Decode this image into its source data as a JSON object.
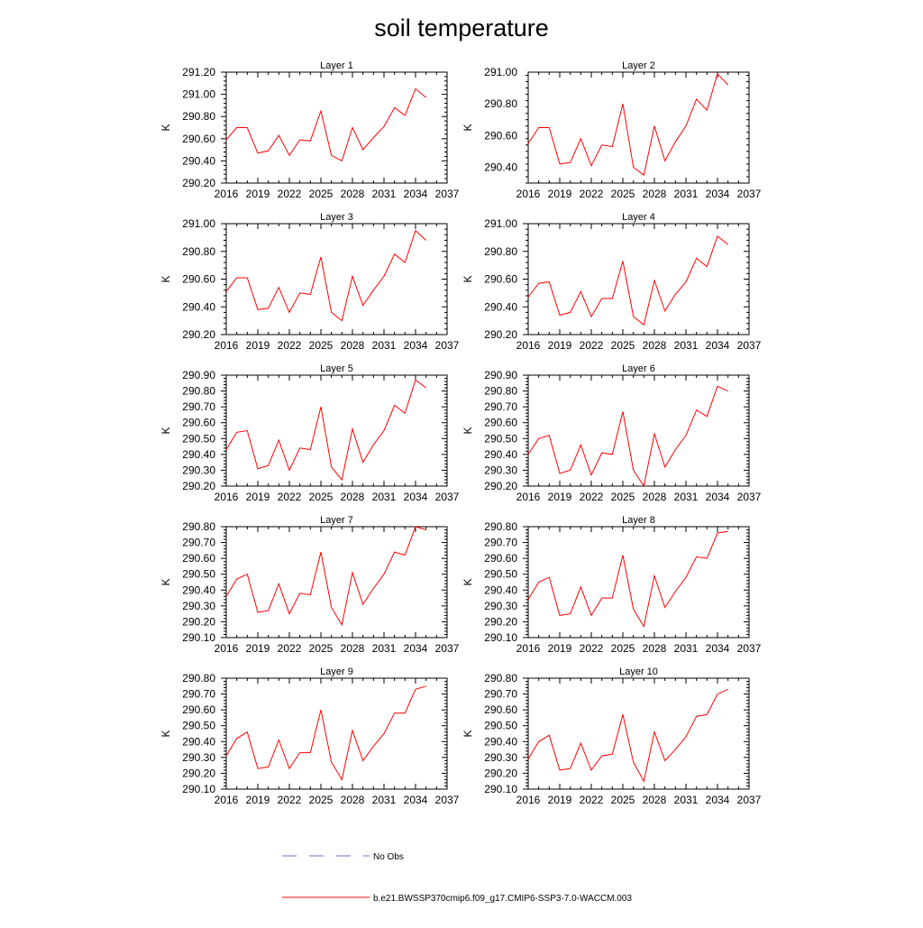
{
  "figure": {
    "title": "soil temperature",
    "series_color": "#ff0000",
    "obs_color": "#6b6bcc"
  },
  "legend": {
    "obs_label": "No Obs",
    "model_label": "b.e21.BWSSP370cmip6.f09_g17.CMIP6-SSP3-7.0-WACCM.003"
  },
  "chart_data": [
    {
      "type": "line",
      "title": "Layer 1",
      "ylabel": "K",
      "xlim": [
        2016,
        2037
      ],
      "xticks": [
        2016,
        2019,
        2022,
        2025,
        2028,
        2031,
        2034,
        2037
      ],
      "ylim": [
        290.2,
        291.2
      ],
      "yticks": [
        "290.20",
        "290.40",
        "290.60",
        "290.80",
        "291.00",
        "291.20"
      ],
      "x": [
        2016,
        2017,
        2018,
        2019,
        2020,
        2021,
        2022,
        2023,
        2024,
        2025,
        2026,
        2027,
        2028,
        2029,
        2030,
        2031,
        2032,
        2033,
        2034,
        2035
      ],
      "values": [
        290.59,
        290.7,
        290.7,
        290.47,
        290.49,
        290.63,
        290.45,
        290.59,
        290.58,
        290.85,
        290.45,
        290.4,
        290.7,
        290.5,
        290.61,
        290.71,
        290.88,
        290.81,
        291.05,
        290.97
      ]
    },
    {
      "type": "line",
      "title": "Layer 2",
      "ylabel": "K",
      "xlim": [
        2016,
        2037
      ],
      "xticks": [
        2016,
        2019,
        2022,
        2025,
        2028,
        2031,
        2034,
        2037
      ],
      "ylim": [
        290.3,
        291.0
      ],
      "yticks": [
        "290.40",
        "290.60",
        "290.80",
        "291.00"
      ],
      "x": [
        2016,
        2017,
        2018,
        2019,
        2020,
        2021,
        2022,
        2023,
        2024,
        2025,
        2026,
        2027,
        2028,
        2029,
        2030,
        2031,
        2032,
        2033,
        2034,
        2035
      ],
      "values": [
        290.55,
        290.65,
        290.65,
        290.42,
        290.43,
        290.58,
        290.41,
        290.54,
        290.53,
        290.8,
        290.4,
        290.35,
        290.66,
        290.44,
        290.56,
        290.66,
        290.83,
        290.76,
        290.99,
        290.92
      ]
    },
    {
      "type": "line",
      "title": "Layer 3",
      "ylabel": "K",
      "xlim": [
        2016,
        2037
      ],
      "xticks": [
        2016,
        2019,
        2022,
        2025,
        2028,
        2031,
        2034,
        2037
      ],
      "ylim": [
        290.2,
        291.0
      ],
      "yticks": [
        "290.20",
        "290.40",
        "290.60",
        "290.80",
        "291.00"
      ],
      "x": [
        2016,
        2017,
        2018,
        2019,
        2020,
        2021,
        2022,
        2023,
        2024,
        2025,
        2026,
        2027,
        2028,
        2029,
        2030,
        2031,
        2032,
        2033,
        2034,
        2035
      ],
      "values": [
        290.51,
        290.61,
        290.61,
        290.38,
        290.39,
        290.54,
        290.36,
        290.5,
        290.49,
        290.76,
        290.36,
        290.3,
        290.62,
        290.41,
        290.52,
        290.62,
        290.78,
        290.72,
        290.95,
        290.88
      ]
    },
    {
      "type": "line",
      "title": "Layer 4",
      "ylabel": "K",
      "xlim": [
        2016,
        2037
      ],
      "xticks": [
        2016,
        2019,
        2022,
        2025,
        2028,
        2031,
        2034,
        2037
      ],
      "ylim": [
        290.2,
        291.0
      ],
      "yticks": [
        "290.20",
        "290.40",
        "290.60",
        "290.80",
        "291.00"
      ],
      "x": [
        2016,
        2017,
        2018,
        2019,
        2020,
        2021,
        2022,
        2023,
        2024,
        2025,
        2026,
        2027,
        2028,
        2029,
        2030,
        2031,
        2032,
        2033,
        2034,
        2035
      ],
      "values": [
        290.47,
        290.57,
        290.58,
        290.34,
        290.36,
        290.51,
        290.33,
        290.46,
        290.46,
        290.73,
        290.33,
        290.27,
        290.59,
        290.37,
        290.49,
        290.58,
        290.75,
        290.69,
        290.91,
        290.85
      ]
    },
    {
      "type": "line",
      "title": "Layer 5",
      "ylabel": "K",
      "xlim": [
        2016,
        2037
      ],
      "xticks": [
        2016,
        2019,
        2022,
        2025,
        2028,
        2031,
        2034,
        2037
      ],
      "ylim": [
        290.2,
        290.9
      ],
      "yticks": [
        "290.20",
        "290.30",
        "290.40",
        "290.50",
        "290.60",
        "290.70",
        "290.80",
        "290.90"
      ],
      "x": [
        2016,
        2017,
        2018,
        2019,
        2020,
        2021,
        2022,
        2023,
        2024,
        2025,
        2026,
        2027,
        2028,
        2029,
        2030,
        2031,
        2032,
        2033,
        2034,
        2035
      ],
      "values": [
        290.43,
        290.54,
        290.55,
        290.31,
        290.33,
        290.49,
        290.3,
        290.44,
        290.43,
        290.7,
        290.32,
        290.24,
        290.56,
        290.35,
        290.46,
        290.55,
        290.71,
        290.66,
        290.87,
        290.82
      ]
    },
    {
      "type": "line",
      "title": "Layer 6",
      "ylabel": "K",
      "xlim": [
        2016,
        2037
      ],
      "xticks": [
        2016,
        2019,
        2022,
        2025,
        2028,
        2031,
        2034,
        2037
      ],
      "ylim": [
        290.2,
        290.9
      ],
      "yticks": [
        "290.20",
        "290.30",
        "290.40",
        "290.50",
        "290.60",
        "290.70",
        "290.80",
        "290.90"
      ],
      "x": [
        2016,
        2017,
        2018,
        2019,
        2020,
        2021,
        2022,
        2023,
        2024,
        2025,
        2026,
        2027,
        2028,
        2029,
        2030,
        2031,
        2032,
        2033,
        2034,
        2035
      ],
      "values": [
        290.4,
        290.5,
        290.52,
        290.28,
        290.3,
        290.46,
        290.27,
        290.41,
        290.4,
        290.67,
        290.3,
        290.2,
        290.53,
        290.32,
        290.43,
        290.52,
        290.68,
        290.64,
        290.83,
        290.8
      ]
    },
    {
      "type": "line",
      "title": "Layer 7",
      "ylabel": "K",
      "xlim": [
        2016,
        2037
      ],
      "xticks": [
        2016,
        2019,
        2022,
        2025,
        2028,
        2031,
        2034,
        2037
      ],
      "ylim": [
        290.1,
        290.8
      ],
      "yticks": [
        "290.10",
        "290.20",
        "290.30",
        "290.40",
        "290.50",
        "290.60",
        "290.70",
        "290.80"
      ],
      "x": [
        2016,
        2017,
        2018,
        2019,
        2020,
        2021,
        2022,
        2023,
        2024,
        2025,
        2026,
        2027,
        2028,
        2029,
        2030,
        2031,
        2032,
        2033,
        2034,
        2035
      ],
      "values": [
        290.36,
        290.47,
        290.5,
        290.26,
        290.27,
        290.44,
        290.25,
        290.38,
        290.37,
        290.64,
        290.29,
        290.18,
        290.51,
        290.31,
        290.41,
        290.5,
        290.64,
        290.62,
        290.8,
        290.78
      ]
    },
    {
      "type": "line",
      "title": "Layer 8",
      "ylabel": "K",
      "xlim": [
        2016,
        2037
      ],
      "xticks": [
        2016,
        2019,
        2022,
        2025,
        2028,
        2031,
        2034,
        2037
      ],
      "ylim": [
        290.1,
        290.8
      ],
      "yticks": [
        "290.10",
        "290.20",
        "290.30",
        "290.40",
        "290.50",
        "290.60",
        "290.70",
        "290.80"
      ],
      "x": [
        2016,
        2017,
        2018,
        2019,
        2020,
        2021,
        2022,
        2023,
        2024,
        2025,
        2026,
        2027,
        2028,
        2029,
        2030,
        2031,
        2032,
        2033,
        2034,
        2035
      ],
      "values": [
        290.34,
        290.45,
        290.48,
        290.24,
        290.25,
        290.42,
        290.24,
        290.35,
        290.35,
        290.62,
        290.28,
        290.17,
        290.49,
        290.29,
        290.39,
        290.48,
        290.61,
        290.6,
        290.76,
        290.77
      ]
    },
    {
      "type": "line",
      "title": "Layer 9",
      "ylabel": "K",
      "xlim": [
        2016,
        2037
      ],
      "xticks": [
        2016,
        2019,
        2022,
        2025,
        2028,
        2031,
        2034,
        2037
      ],
      "ylim": [
        290.1,
        290.8
      ],
      "yticks": [
        "290.10",
        "290.20",
        "290.30",
        "290.40",
        "290.50",
        "290.60",
        "290.70",
        "290.80"
      ],
      "x": [
        2016,
        2017,
        2018,
        2019,
        2020,
        2021,
        2022,
        2023,
        2024,
        2025,
        2026,
        2027,
        2028,
        2029,
        2030,
        2031,
        2032,
        2033,
        2034,
        2035
      ],
      "values": [
        290.31,
        290.42,
        290.46,
        290.23,
        290.24,
        290.41,
        290.23,
        290.33,
        290.33,
        290.6,
        290.27,
        290.16,
        290.47,
        290.28,
        290.37,
        290.45,
        290.58,
        290.58,
        290.73,
        290.75
      ]
    },
    {
      "type": "line",
      "title": "Layer 10",
      "ylabel": "K",
      "xlim": [
        2016,
        2037
      ],
      "xticks": [
        2016,
        2019,
        2022,
        2025,
        2028,
        2031,
        2034,
        2037
      ],
      "ylim": [
        290.1,
        290.8
      ],
      "yticks": [
        "290.10",
        "290.20",
        "290.30",
        "290.40",
        "290.50",
        "290.60",
        "290.70",
        "290.80"
      ],
      "x": [
        2016,
        2017,
        2018,
        2019,
        2020,
        2021,
        2022,
        2023,
        2024,
        2025,
        2026,
        2027,
        2028,
        2029,
        2030,
        2031,
        2032,
        2033,
        2034,
        2035
      ],
      "values": [
        290.29,
        290.4,
        290.44,
        290.22,
        290.23,
        290.39,
        290.22,
        290.31,
        290.32,
        290.57,
        290.27,
        290.15,
        290.46,
        290.28,
        290.35,
        290.43,
        290.56,
        290.57,
        290.7,
        290.73
      ]
    }
  ]
}
